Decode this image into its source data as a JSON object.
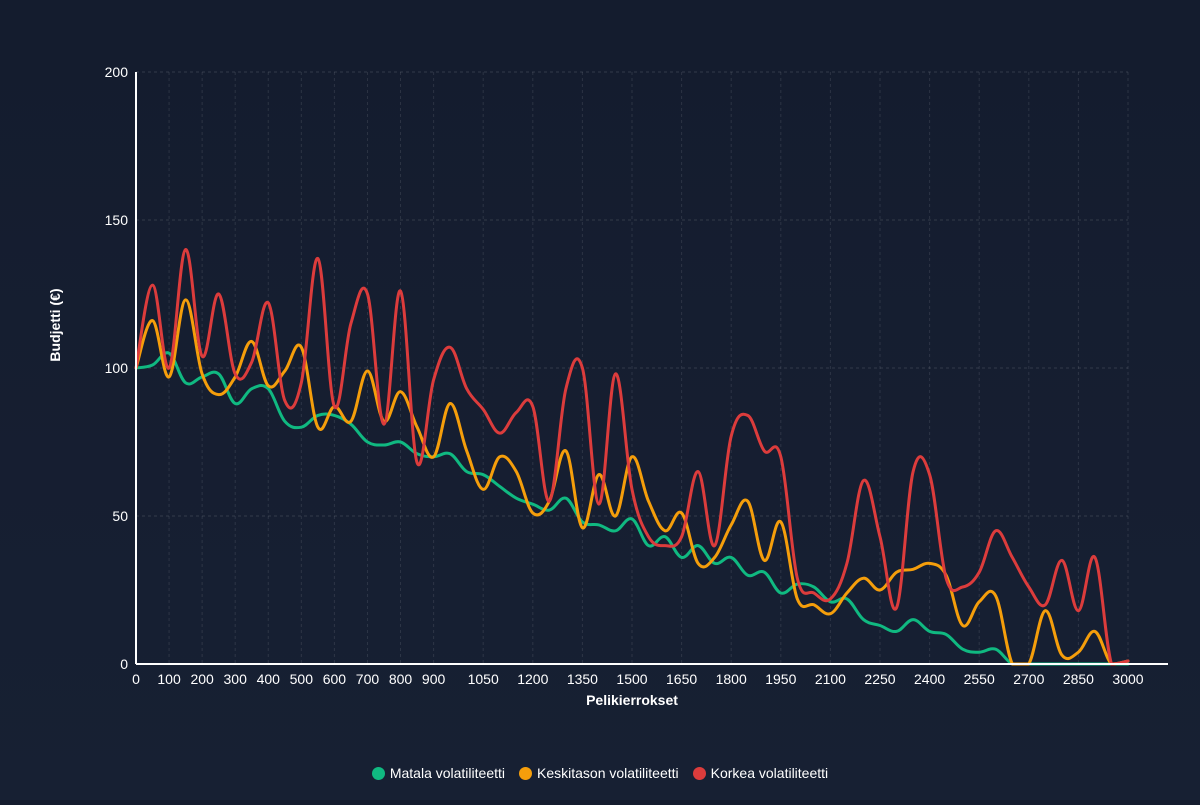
{
  "chart_data": {
    "type": "line",
    "title": "",
    "xlabel": "Pelikierrokset",
    "ylabel": "Budjetti (€)",
    "xlim": [
      0,
      3000
    ],
    "ylim": [
      0,
      200
    ],
    "x_ticks": [
      "0",
      "100",
      "200",
      "300",
      "400",
      "500",
      "600",
      "700",
      "800",
      "900",
      "1050",
      "1200",
      "1350",
      "1500",
      "1650",
      "1800",
      "1950",
      "2100",
      "2250",
      "2400",
      "2550",
      "2700",
      "2850",
      "3000"
    ],
    "x_tick_values": [
      0,
      100,
      200,
      300,
      400,
      500,
      600,
      700,
      800,
      900,
      1050,
      1200,
      1350,
      1500,
      1650,
      1800,
      1950,
      2100,
      2250,
      2400,
      2550,
      2700,
      2850,
      3000
    ],
    "y_ticks": [
      "0",
      "50",
      "100",
      "150",
      "200"
    ],
    "y_tick_values": [
      0,
      50,
      100,
      150,
      200
    ],
    "grid": true,
    "legend_position": "bottom",
    "series": [
      {
        "name": "Matala volatiliteetti",
        "color": "#10b981",
        "points": [
          [
            0,
            100
          ],
          [
            50,
            101
          ],
          [
            100,
            105
          ],
          [
            150,
            95
          ],
          [
            200,
            97
          ],
          [
            250,
            98
          ],
          [
            300,
            88
          ],
          [
            350,
            93
          ],
          [
            400,
            93
          ],
          [
            450,
            82
          ],
          [
            500,
            80
          ],
          [
            550,
            84
          ],
          [
            600,
            84
          ],
          [
            650,
            81
          ],
          [
            700,
            75
          ],
          [
            750,
            74
          ],
          [
            800,
            75
          ],
          [
            850,
            71
          ],
          [
            900,
            70
          ],
          [
            950,
            71
          ],
          [
            1000,
            65
          ],
          [
            1050,
            64
          ],
          [
            1100,
            60
          ],
          [
            1150,
            56
          ],
          [
            1200,
            54
          ],
          [
            1250,
            52
          ],
          [
            1300,
            56
          ],
          [
            1350,
            48
          ],
          [
            1400,
            47
          ],
          [
            1450,
            45
          ],
          [
            1500,
            49
          ],
          [
            1550,
            40
          ],
          [
            1600,
            43
          ],
          [
            1650,
            36
          ],
          [
            1700,
            40
          ],
          [
            1750,
            34
          ],
          [
            1800,
            36
          ],
          [
            1850,
            30
          ],
          [
            1900,
            31
          ],
          [
            1950,
            24
          ],
          [
            2000,
            27
          ],
          [
            2050,
            26
          ],
          [
            2100,
            21
          ],
          [
            2150,
            22
          ],
          [
            2200,
            15
          ],
          [
            2250,
            13
          ],
          [
            2300,
            11
          ],
          [
            2350,
            15
          ],
          [
            2400,
            11
          ],
          [
            2450,
            10
          ],
          [
            2500,
            5
          ],
          [
            2550,
            4
          ],
          [
            2600,
            5
          ],
          [
            2650,
            0
          ],
          [
            2700,
            0
          ],
          [
            2800,
            0
          ],
          [
            2900,
            0
          ],
          [
            3000,
            0
          ]
        ]
      },
      {
        "name": "Keskitason volatiliteetti",
        "color": "#f59e0b",
        "points": [
          [
            0,
            100
          ],
          [
            50,
            116
          ],
          [
            100,
            97
          ],
          [
            150,
            123
          ],
          [
            200,
            98
          ],
          [
            250,
            91
          ],
          [
            300,
            97
          ],
          [
            350,
            109
          ],
          [
            400,
            94
          ],
          [
            450,
            99
          ],
          [
            500,
            107
          ],
          [
            550,
            80
          ],
          [
            600,
            87
          ],
          [
            650,
            82
          ],
          [
            700,
            99
          ],
          [
            750,
            82
          ],
          [
            800,
            92
          ],
          [
            850,
            80
          ],
          [
            900,
            70
          ],
          [
            950,
            88
          ],
          [
            1000,
            72
          ],
          [
            1050,
            59
          ],
          [
            1100,
            70
          ],
          [
            1150,
            65
          ],
          [
            1200,
            51
          ],
          [
            1250,
            55
          ],
          [
            1300,
            72
          ],
          [
            1350,
            46
          ],
          [
            1400,
            64
          ],
          [
            1450,
            50
          ],
          [
            1500,
            70
          ],
          [
            1550,
            55
          ],
          [
            1600,
            45
          ],
          [
            1650,
            51
          ],
          [
            1700,
            34
          ],
          [
            1750,
            36
          ],
          [
            1800,
            47
          ],
          [
            1850,
            55
          ],
          [
            1900,
            35
          ],
          [
            1950,
            48
          ],
          [
            2000,
            22
          ],
          [
            2050,
            20
          ],
          [
            2100,
            17
          ],
          [
            2150,
            24
          ],
          [
            2200,
            29
          ],
          [
            2250,
            25
          ],
          [
            2300,
            31
          ],
          [
            2350,
            32
          ],
          [
            2400,
            34
          ],
          [
            2450,
            30
          ],
          [
            2500,
            13
          ],
          [
            2550,
            21
          ],
          [
            2600,
            23
          ],
          [
            2650,
            0
          ],
          [
            2700,
            0
          ],
          [
            2750,
            18
          ],
          [
            2800,
            3
          ],
          [
            2850,
            4
          ],
          [
            2900,
            11
          ],
          [
            2950,
            0
          ],
          [
            3000,
            1
          ]
        ]
      },
      {
        "name": "Korkea volatiliteetti",
        "color": "#dc3c3c",
        "points": [
          [
            0,
            100
          ],
          [
            50,
            128
          ],
          [
            100,
            100
          ],
          [
            150,
            140
          ],
          [
            200,
            104
          ],
          [
            250,
            125
          ],
          [
            300,
            98
          ],
          [
            350,
            102
          ],
          [
            400,
            122
          ],
          [
            450,
            89
          ],
          [
            500,
            95
          ],
          [
            550,
            137
          ],
          [
            600,
            87
          ],
          [
            650,
            115
          ],
          [
            700,
            125
          ],
          [
            750,
            81
          ],
          [
            800,
            126
          ],
          [
            850,
            68
          ],
          [
            900,
            96
          ],
          [
            950,
            107
          ],
          [
            1000,
            93
          ],
          [
            1050,
            86
          ],
          [
            1100,
            78
          ],
          [
            1150,
            85
          ],
          [
            1200,
            87
          ],
          [
            1250,
            55
          ],
          [
            1300,
            93
          ],
          [
            1350,
            100
          ],
          [
            1400,
            54
          ],
          [
            1450,
            98
          ],
          [
            1500,
            59
          ],
          [
            1550,
            43
          ],
          [
            1600,
            40
          ],
          [
            1650,
            43
          ],
          [
            1700,
            65
          ],
          [
            1750,
            40
          ],
          [
            1800,
            77
          ],
          [
            1850,
            84
          ],
          [
            1900,
            72
          ],
          [
            1950,
            70
          ],
          [
            2000,
            29
          ],
          [
            2050,
            24
          ],
          [
            2100,
            22
          ],
          [
            2150,
            34
          ],
          [
            2200,
            62
          ],
          [
            2250,
            43
          ],
          [
            2300,
            19
          ],
          [
            2350,
            65
          ],
          [
            2400,
            64
          ],
          [
            2450,
            29
          ],
          [
            2500,
            26
          ],
          [
            2550,
            31
          ],
          [
            2600,
            45
          ],
          [
            2650,
            36
          ],
          [
            2700,
            26
          ],
          [
            2750,
            20
          ],
          [
            2800,
            35
          ],
          [
            2850,
            18
          ],
          [
            2900,
            36
          ],
          [
            2950,
            0
          ],
          [
            3000,
            1
          ]
        ]
      }
    ]
  }
}
